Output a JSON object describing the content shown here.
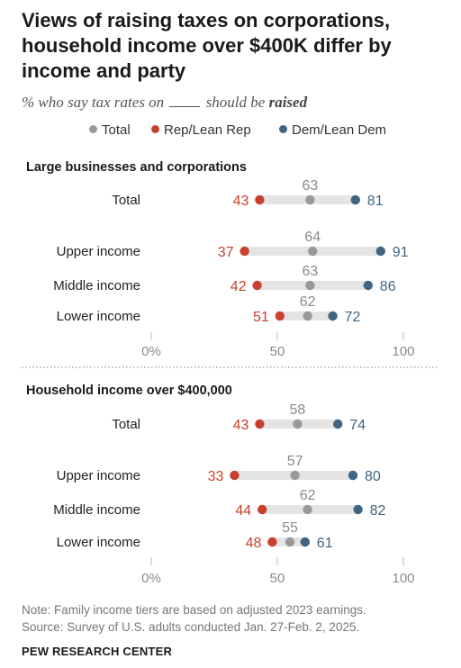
{
  "title": "Views of raising taxes on corporations, household income over $400K differ by income and party",
  "subtitle": {
    "prefix": "% who say tax rates on",
    "middle": "should be",
    "emphasis": "raised"
  },
  "colors": {
    "total": "#999999",
    "rep": "#c8412e",
    "dem": "#3f6582",
    "bar": "#e4e4e4",
    "tick": "#8a8a8a"
  },
  "legend": [
    {
      "key": "total",
      "label": "Total"
    },
    {
      "key": "rep",
      "label": "Rep/Lean Rep"
    },
    {
      "key": "dem",
      "label": "Dem/Lean Dem"
    }
  ],
  "chart_data": [
    {
      "type": "dot",
      "title": "Large businesses and corporations",
      "categories": [
        "Total",
        "Upper income",
        "Middle income",
        "Lower income"
      ],
      "series": [
        {
          "name": "Total",
          "values": [
            63,
            64,
            63,
            62
          ]
        },
        {
          "name": "Rep/Lean Rep",
          "values": [
            43,
            37,
            42,
            51
          ]
        },
        {
          "name": "Dem/Lean Dem",
          "values": [
            81,
            91,
            86,
            72
          ]
        }
      ],
      "xlim": [
        0,
        100
      ],
      "xticks": [
        "0%",
        "50",
        "100"
      ]
    },
    {
      "type": "dot",
      "title": "Household income over $400,000",
      "categories": [
        "Total",
        "Upper income",
        "Middle income",
        "Lower income"
      ],
      "series": [
        {
          "name": "Total",
          "values": [
            58,
            57,
            62,
            55
          ]
        },
        {
          "name": "Rep/Lean Rep",
          "values": [
            43,
            33,
            44,
            48
          ]
        },
        {
          "name": "Dem/Lean Dem",
          "values": [
            74,
            80,
            82,
            61
          ]
        }
      ],
      "xlim": [
        0,
        100
      ],
      "xticks": [
        "0%",
        "50",
        "100"
      ]
    }
  ],
  "notes": [
    "Note: Family income tiers are based on adjusted 2023 earnings.",
    "Source: Survey of U.S. adults conducted Jan. 27-Feb. 2, 2025."
  ],
  "source_name": "PEW RESEARCH CENTER"
}
